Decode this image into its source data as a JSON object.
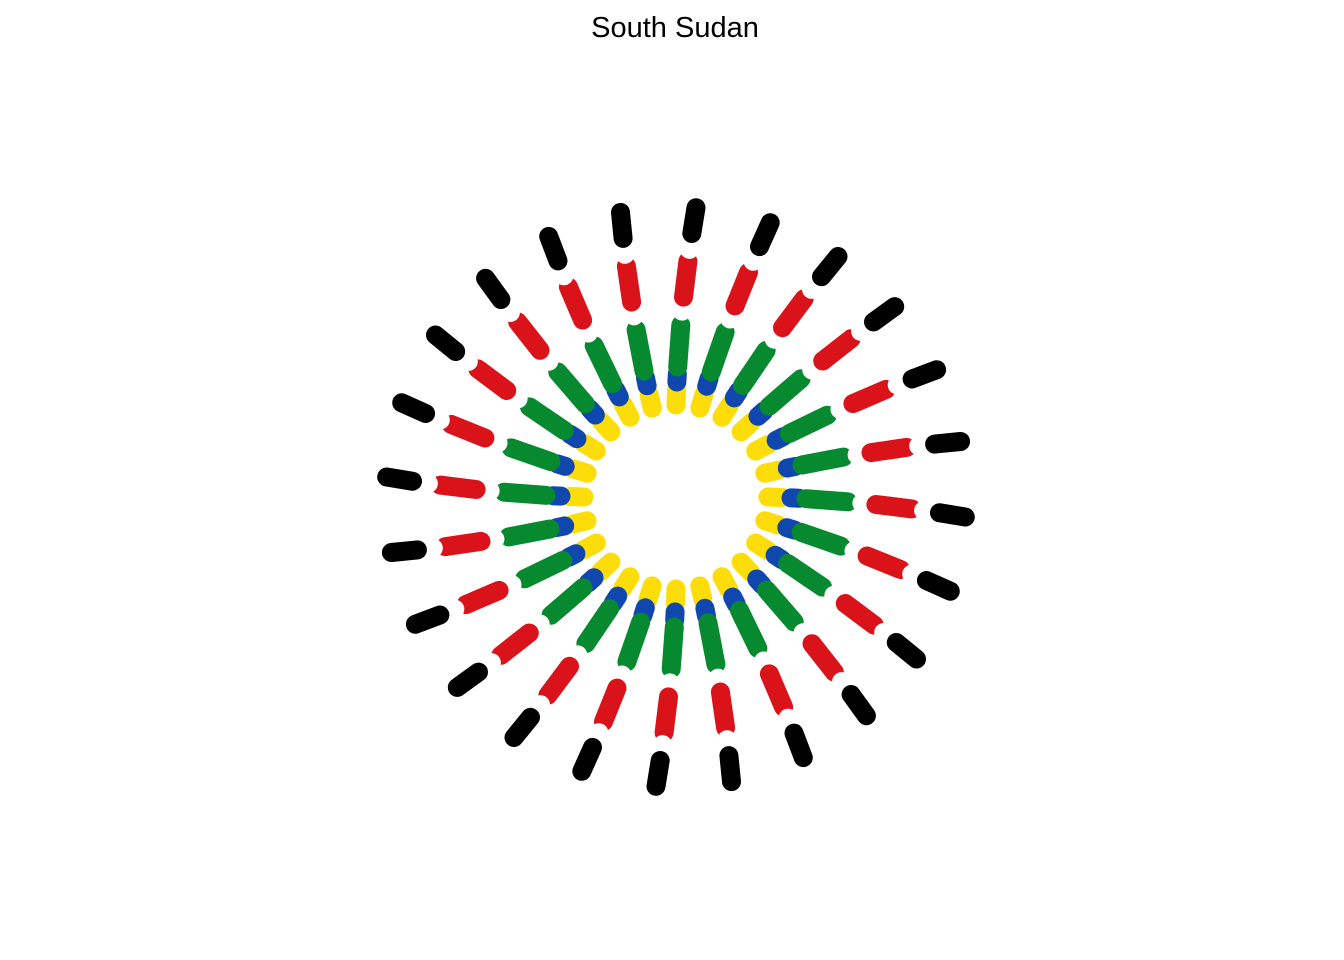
{
  "title": "South Sudan",
  "sunburst": {
    "ray_count": 24,
    "segment_order_inner_to_outer": [
      "yellow",
      "blue",
      "green",
      "white",
      "red",
      "white",
      "black"
    ],
    "colors": {
      "yellow": "#FCDD09",
      "blue": "#0F47AF",
      "green": "#078930",
      "white": "#FFFFFF",
      "red": "#DA121A",
      "black": "#000000"
    }
  }
}
